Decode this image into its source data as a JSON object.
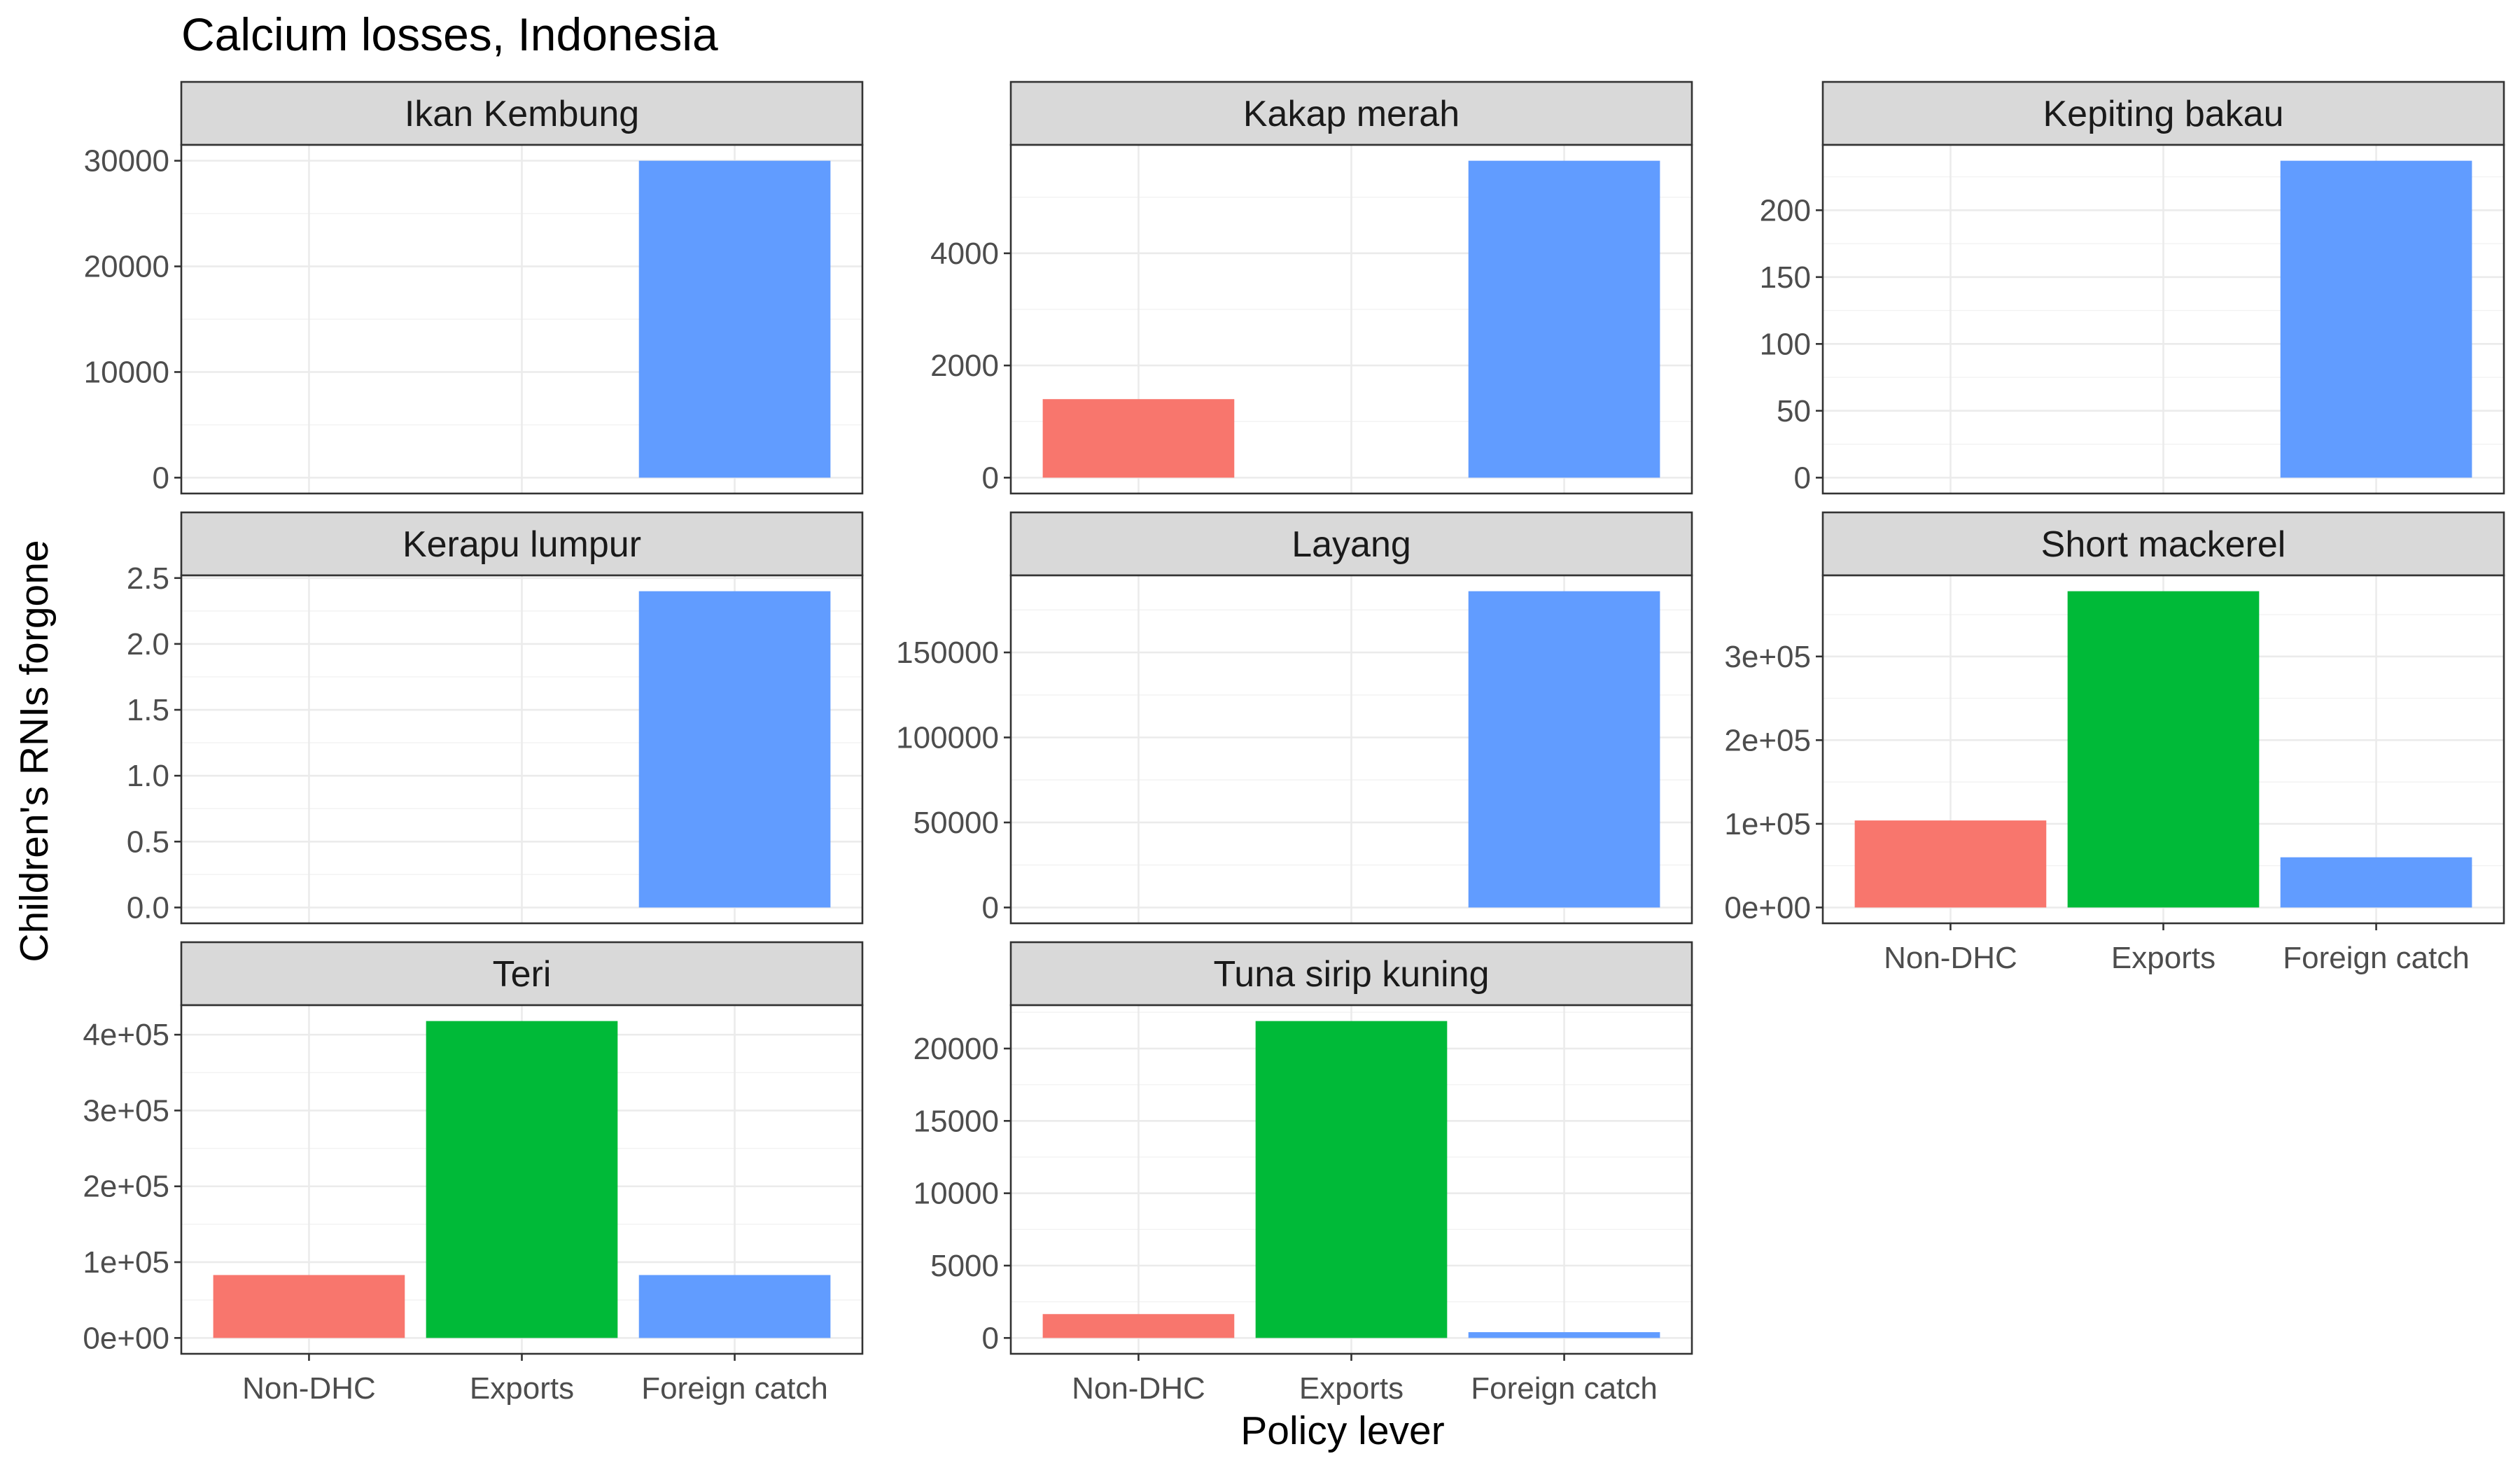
{
  "chart_data": {
    "type": "bar",
    "title": "Calcium losses, Indonesia",
    "xlabel": "Policy lever",
    "ylabel": "Children's RNIs forgone",
    "categories": [
      "Non-DHC",
      "Exports",
      "Foreign catch"
    ],
    "colors": [
      "#F8766D",
      "#00BA38",
      "#619CFF"
    ],
    "panels": [
      {
        "name": "Ikan Kembung",
        "values": [
          0,
          0,
          30000
        ],
        "ylim": [
          -1500,
          31500
        ],
        "ticks": [
          0,
          10000,
          20000,
          30000
        ],
        "tick_labels": [
          "0",
          "10000",
          "20000",
          "30000"
        ]
      },
      {
        "name": "Kakap merah",
        "values": [
          1400,
          0,
          5650
        ],
        "ylim": [
          -282.5,
          5932.5
        ],
        "ticks": [
          0,
          2000,
          4000
        ],
        "tick_labels": [
          "0",
          "2000",
          "4000"
        ]
      },
      {
        "name": "Kepiting bakau",
        "values": [
          0,
          0,
          237
        ],
        "ylim": [
          -11.85,
          248.85
        ],
        "ticks": [
          0,
          50,
          100,
          150,
          200
        ],
        "tick_labels": [
          "0",
          "50",
          "100",
          "150",
          "200"
        ]
      },
      {
        "name": "Kerapu lumpur",
        "values": [
          0,
          0,
          2.4
        ],
        "ylim": [
          -0.12,
          2.52
        ],
        "ticks": [
          0,
          0.5,
          1.0,
          1.5,
          2.0,
          2.5
        ],
        "tick_labels": [
          "0.0",
          "0.5",
          "1.0",
          "1.5",
          "2.0",
          "2.5"
        ]
      },
      {
        "name": "Layang",
        "values": [
          0,
          0,
          186000
        ],
        "ylim": [
          -9300,
          195300
        ],
        "ticks": [
          0,
          50000,
          100000,
          150000
        ],
        "tick_labels": [
          "0",
          "50000",
          "100000",
          "150000"
        ]
      },
      {
        "name": "Short mackerel",
        "values": [
          104000,
          378000,
          60000
        ],
        "ylim": [
          -18900,
          396900
        ],
        "ticks": [
          0,
          100000,
          200000,
          300000
        ],
        "tick_labels": [
          "0e+00",
          "1e+05",
          "2e+05",
          "3e+05"
        ]
      },
      {
        "name": "Teri",
        "values": [
          83000,
          418000,
          83000
        ],
        "ylim": [
          -20900,
          438900
        ],
        "ticks": [
          0,
          100000,
          200000,
          300000,
          400000
        ],
        "tick_labels": [
          "0e+00",
          "1e+05",
          "2e+05",
          "3e+05",
          "4e+05"
        ]
      },
      {
        "name": "Tuna sirip kuning",
        "values": [
          1650,
          21900,
          400
        ],
        "ylim": [
          -1095,
          22995
        ],
        "ticks": [
          0,
          5000,
          10000,
          15000,
          20000
        ],
        "tick_labels": [
          "0",
          "5000",
          "10000",
          "15000",
          "20000"
        ]
      }
    ]
  }
}
